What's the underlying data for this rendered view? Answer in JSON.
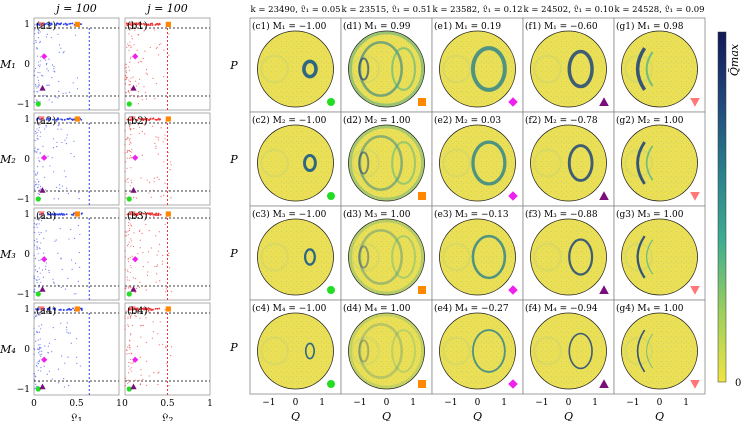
{
  "chart_data": {
    "type": "scatter",
    "left_column_titles": [
      "j = 100",
      "j = 100"
    ],
    "left_row_labels": [
      "M₁",
      "M₂",
      "M₃",
      "M₄"
    ],
    "left_xlabels": [
      "𝔏₁",
      "𝔏₂"
    ],
    "left_panel_labels": [
      [
        "(a1)",
        "(b1)"
      ],
      [
        "(a2)",
        "(b2)"
      ],
      [
        "(a3)",
        "(b3)"
      ],
      [
        "(a4)",
        "(b4)"
      ]
    ],
    "left_xticks": [
      "0",
      "0.5",
      "1"
    ],
    "left_yticks": [
      "1",
      "0",
      "−1"
    ],
    "left_xlim": [
      0,
      1
    ],
    "left_ylim": [
      -1.15,
      1.15
    ],
    "threshold_lines": {
      "x_a": 0.65,
      "x_b": 0.5,
      "y_high": 0.9,
      "y_low": -0.8
    },
    "series_colors": {
      "a": "#3344ee",
      "b": "#ee3333"
    },
    "markers": [
      {
        "shape": "circle",
        "color": "#22dd22",
        "x": 0.05,
        "y": [
          -1.0,
          -1.0,
          -1.0,
          -1.0
        ]
      },
      {
        "shape": "square",
        "color": "#ff8800",
        "x": 0.51,
        "y": [
          0.99,
          1.0,
          1.0,
          1.0
        ]
      },
      {
        "shape": "diamond",
        "color": "#ee22ee",
        "x": 0.12,
        "y": [
          0.19,
          0.03,
          -0.13,
          -0.27
        ]
      },
      {
        "shape": "triangle-up",
        "color": "#7a0e7a",
        "x": 0.1,
        "y": [
          -0.6,
          -0.78,
          -0.88,
          -0.94
        ]
      },
      {
        "shape": "triangle-down",
        "color": "#ff7777",
        "x": 0.09,
        "y": [
          0.98,
          1.0,
          1.0,
          1.0
        ]
      }
    ],
    "husimi_columns": [
      {
        "id": "c",
        "title": "k = 23490, 𝔏₁ = 0.05",
        "marker": "circle",
        "color": "#22dd22"
      },
      {
        "id": "d",
        "title": "k = 23515, 𝔏₁ = 0.51",
        "marker": "square",
        "color": "#ff8800"
      },
      {
        "id": "e",
        "title": "k = 23582, 𝔏₁ = 0.12",
        "marker": "diamond",
        "color": "#ee22ee"
      },
      {
        "id": "f",
        "title": "k = 24502, 𝔏₁ = 0.10",
        "marker": "triangle-up",
        "color": "#7a0e7a"
      },
      {
        "id": "g",
        "title": "k = 24528, 𝔏₁ = 0.09",
        "marker": "triangle-down",
        "color": "#ff7777"
      }
    ],
    "husimi_panels": [
      [
        "(c1) M₁ = −1.00",
        "(d1) M₁ = 0.99",
        "(e1) M₁ = 0.19",
        "(f1) M₁ = −0.60",
        "(g1) M₁ = 0.98"
      ],
      [
        "(c2) M₂ = −1.00",
        "(d2) M₂ = 1.00",
        "(e2) M₂ = 0.03",
        "(f2) M₂ = −0.78",
        "(g2) M₂ = 1.00"
      ],
      [
        "(c3) M₃ = −1.00",
        "(d3) M₃ = 1.00",
        "(e3) M₃ = −0.13",
        "(f3) M₃ = −0.88",
        "(g3) M₃ = 1.00"
      ],
      [
        "(c4) M₄ = −1.00",
        "(d4) M₄ = 1.00",
        "(e4) M₄ = −0.27",
        "(f4) M₄ = −0.94",
        "(g4) M₄ = 1.00"
      ]
    ],
    "husimi_ylabel": "P",
    "husimi_xlabel": "Q",
    "husimi_xticks": [
      "−1",
      "0",
      "1"
    ],
    "colorbar": {
      "label": "Q̃max",
      "min_label": "0",
      "colors": [
        "#f0e442",
        "#9ccf5e",
        "#3fae8f",
        "#2a7f8c",
        "#21477a",
        "#111a55"
      ]
    }
  }
}
